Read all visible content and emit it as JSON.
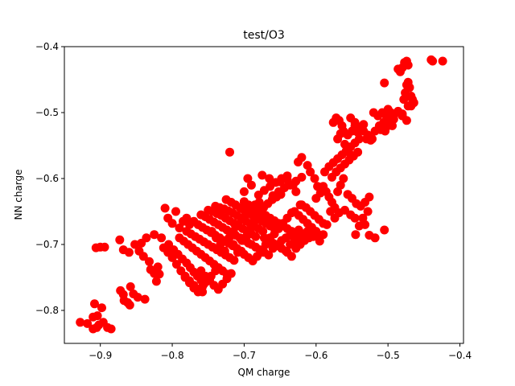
{
  "chart_data": {
    "type": "scatter",
    "title": "test/O3",
    "xlabel": "QM charge",
    "ylabel": "NN charge",
    "xlim": [
      -0.95,
      -0.395
    ],
    "ylim": [
      -0.85,
      -0.4
    ],
    "xticks": [
      -0.9,
      -0.8,
      -0.7,
      -0.6,
      -0.5,
      -0.4
    ],
    "xtick_labels": [
      "−0.9",
      "−0.8",
      "−0.7",
      "−0.6",
      "−0.5",
      "−0.4"
    ],
    "yticks": [
      -0.8,
      -0.7,
      -0.6,
      -0.5,
      -0.4
    ],
    "ytick_labels": [
      "−0.8",
      "−0.7",
      "−0.6",
      "−0.5",
      "−0.4"
    ],
    "grid": false,
    "legend": "none",
    "marker_color": "#ff0000",
    "points": [
      [
        -0.928,
        -0.818
      ],
      [
        -0.918,
        -0.82
      ],
      [
        -0.91,
        -0.828
      ],
      [
        -0.905,
        -0.826
      ],
      [
        -0.902,
        -0.822
      ],
      [
        -0.896,
        -0.818
      ],
      [
        -0.89,
        -0.826
      ],
      [
        -0.885,
        -0.828
      ],
      [
        -0.908,
        -0.79
      ],
      [
        -0.898,
        -0.796
      ],
      [
        -0.904,
        -0.808
      ],
      [
        -0.91,
        -0.81
      ],
      [
        -0.906,
        -0.705
      ],
      [
        -0.9,
        -0.704
      ],
      [
        -0.894,
        -0.704
      ],
      [
        -0.873,
        -0.693
      ],
      [
        -0.868,
        -0.708
      ],
      [
        -0.86,
        -0.712
      ],
      [
        -0.872,
        -0.77
      ],
      [
        -0.868,
        -0.776
      ],
      [
        -0.867,
        -0.785
      ],
      [
        -0.862,
        -0.788
      ],
      [
        -0.859,
        -0.792
      ],
      [
        -0.854,
        -0.775
      ],
      [
        -0.858,
        -0.764
      ],
      [
        -0.848,
        -0.78
      ],
      [
        -0.838,
        -0.783
      ],
      [
        -0.852,
        -0.7
      ],
      [
        -0.846,
        -0.71
      ],
      [
        -0.84,
        -0.718
      ],
      [
        -0.843,
        -0.698
      ],
      [
        -0.836,
        -0.69
      ],
      [
        -0.832,
        -0.726
      ],
      [
        -0.83,
        -0.738
      ],
      [
        -0.825,
        -0.744
      ],
      [
        -0.822,
        -0.756
      ],
      [
        -0.82,
        -0.734
      ],
      [
        -0.818,
        -0.745
      ],
      [
        -0.81,
        -0.645
      ],
      [
        -0.806,
        -0.66
      ],
      [
        -0.8,
        -0.668
      ],
      [
        -0.795,
        -0.65
      ],
      [
        -0.79,
        -0.675
      ],
      [
        -0.785,
        -0.665
      ],
      [
        -0.78,
        -0.66
      ],
      [
        -0.776,
        -0.67
      ],
      [
        -0.825,
        -0.685
      ],
      [
        -0.815,
        -0.69
      ],
      [
        -0.805,
        -0.7
      ],
      [
        -0.798,
        -0.708
      ],
      [
        -0.792,
        -0.715
      ],
      [
        -0.786,
        -0.722
      ],
      [
        -0.78,
        -0.728
      ],
      [
        -0.775,
        -0.735
      ],
      [
        -0.77,
        -0.742
      ],
      [
        -0.765,
        -0.748
      ],
      [
        -0.76,
        -0.754
      ],
      [
        -0.756,
        -0.76
      ],
      [
        -0.812,
        -0.705
      ],
      [
        -0.806,
        -0.712
      ],
      [
        -0.8,
        -0.72
      ],
      [
        -0.794,
        -0.73
      ],
      [
        -0.788,
        -0.74
      ],
      [
        -0.782,
        -0.748
      ],
      [
        -0.776,
        -0.755
      ],
      [
        -0.77,
        -0.762
      ],
      [
        -0.764,
        -0.768
      ],
      [
        -0.758,
        -0.772
      ],
      [
        -0.79,
        -0.69
      ],
      [
        -0.784,
        -0.695
      ],
      [
        -0.778,
        -0.7
      ],
      [
        -0.772,
        -0.705
      ],
      [
        -0.766,
        -0.71
      ],
      [
        -0.76,
        -0.715
      ],
      [
        -0.754,
        -0.72
      ],
      [
        -0.748,
        -0.725
      ],
      [
        -0.742,
        -0.73
      ],
      [
        -0.736,
        -0.735
      ],
      [
        -0.73,
        -0.74
      ],
      [
        -0.724,
        -0.745
      ],
      [
        -0.78,
        -0.68
      ],
      [
        -0.774,
        -0.684
      ],
      [
        -0.768,
        -0.688
      ],
      [
        -0.762,
        -0.692
      ],
      [
        -0.756,
        -0.696
      ],
      [
        -0.75,
        -0.7
      ],
      [
        -0.744,
        -0.704
      ],
      [
        -0.738,
        -0.708
      ],
      [
        -0.732,
        -0.712
      ],
      [
        -0.726,
        -0.716
      ],
      [
        -0.72,
        -0.72
      ],
      [
        -0.714,
        -0.724
      ],
      [
        -0.77,
        -0.665
      ],
      [
        -0.764,
        -0.67
      ],
      [
        -0.758,
        -0.674
      ],
      [
        -0.752,
        -0.678
      ],
      [
        -0.746,
        -0.682
      ],
      [
        -0.74,
        -0.686
      ],
      [
        -0.734,
        -0.69
      ],
      [
        -0.728,
        -0.694
      ],
      [
        -0.722,
        -0.698
      ],
      [
        -0.716,
        -0.702
      ],
      [
        -0.71,
        -0.706
      ],
      [
        -0.704,
        -0.71
      ],
      [
        -0.76,
        -0.655
      ],
      [
        -0.754,
        -0.658
      ],
      [
        -0.748,
        -0.662
      ],
      [
        -0.742,
        -0.666
      ],
      [
        -0.736,
        -0.67
      ],
      [
        -0.73,
        -0.674
      ],
      [
        -0.724,
        -0.678
      ],
      [
        -0.718,
        -0.682
      ],
      [
        -0.712,
        -0.686
      ],
      [
        -0.706,
        -0.69
      ],
      [
        -0.7,
        -0.694
      ],
      [
        -0.694,
        -0.698
      ],
      [
        -0.75,
        -0.648
      ],
      [
        -0.744,
        -0.65
      ],
      [
        -0.738,
        -0.653
      ],
      [
        -0.732,
        -0.656
      ],
      [
        -0.726,
        -0.66
      ],
      [
        -0.72,
        -0.664
      ],
      [
        -0.714,
        -0.668
      ],
      [
        -0.708,
        -0.672
      ],
      [
        -0.702,
        -0.676
      ],
      [
        -0.696,
        -0.68
      ],
      [
        -0.69,
        -0.684
      ],
      [
        -0.684,
        -0.688
      ],
      [
        -0.74,
        -0.642
      ],
      [
        -0.734,
        -0.644
      ],
      [
        -0.728,
        -0.646
      ],
      [
        -0.722,
        -0.649
      ],
      [
        -0.716,
        -0.652
      ],
      [
        -0.71,
        -0.656
      ],
      [
        -0.704,
        -0.66
      ],
      [
        -0.698,
        -0.664
      ],
      [
        -0.692,
        -0.668
      ],
      [
        -0.686,
        -0.672
      ],
      [
        -0.68,
        -0.676
      ],
      [
        -0.674,
        -0.68
      ],
      [
        -0.725,
        -0.632
      ],
      [
        -0.718,
        -0.636
      ],
      [
        -0.712,
        -0.64
      ],
      [
        -0.706,
        -0.644
      ],
      [
        -0.7,
        -0.648
      ],
      [
        -0.694,
        -0.652
      ],
      [
        -0.688,
        -0.656
      ],
      [
        -0.682,
        -0.66
      ],
      [
        -0.676,
        -0.664
      ],
      [
        -0.67,
        -0.668
      ],
      [
        -0.664,
        -0.672
      ],
      [
        -0.658,
        -0.676
      ],
      [
        -0.7,
        -0.635
      ],
      [
        -0.694,
        -0.64
      ],
      [
        -0.688,
        -0.644
      ],
      [
        -0.682,
        -0.648
      ],
      [
        -0.676,
        -0.652
      ],
      [
        -0.67,
        -0.656
      ],
      [
        -0.664,
        -0.66
      ],
      [
        -0.658,
        -0.664
      ],
      [
        -0.652,
        -0.668
      ],
      [
        -0.646,
        -0.672
      ],
      [
        -0.64,
        -0.676
      ],
      [
        -0.634,
        -0.68
      ],
      [
        -0.69,
        -0.7
      ],
      [
        -0.684,
        -0.704
      ],
      [
        -0.678,
        -0.708
      ],
      [
        -0.672,
        -0.712
      ],
      [
        -0.666,
        -0.716
      ],
      [
        -0.66,
        -0.706
      ],
      [
        -0.654,
        -0.7
      ],
      [
        -0.648,
        -0.694
      ],
      [
        -0.642,
        -0.69
      ],
      [
        -0.636,
        -0.686
      ],
      [
        -0.63,
        -0.682
      ],
      [
        -0.624,
        -0.678
      ],
      [
        -0.7,
        -0.715
      ],
      [
        -0.694,
        -0.72
      ],
      [
        -0.688,
        -0.725
      ],
      [
        -0.682,
        -0.718
      ],
      [
        -0.676,
        -0.712
      ],
      [
        -0.67,
        -0.7
      ],
      [
        -0.664,
        -0.69
      ],
      [
        -0.658,
        -0.684
      ],
      [
        -0.652,
        -0.676
      ],
      [
        -0.646,
        -0.668
      ],
      [
        -0.64,
        -0.66
      ],
      [
        -0.634,
        -0.652
      ],
      [
        -0.745,
        -0.68
      ],
      [
        -0.739,
        -0.69
      ],
      [
        -0.733,
        -0.7
      ],
      [
        -0.727,
        -0.71
      ],
      [
        -0.721,
        -0.69
      ],
      [
        -0.715,
        -0.68
      ],
      [
        -0.709,
        -0.67
      ],
      [
        -0.703,
        -0.662
      ],
      [
        -0.697,
        -0.654
      ],
      [
        -0.691,
        -0.646
      ],
      [
        -0.685,
        -0.64
      ],
      [
        -0.679,
        -0.636
      ],
      [
        -0.715,
        -0.7
      ],
      [
        -0.709,
        -0.712
      ],
      [
        -0.703,
        -0.694
      ],
      [
        -0.697,
        -0.688
      ],
      [
        -0.691,
        -0.676
      ],
      [
        -0.685,
        -0.664
      ],
      [
        -0.679,
        -0.65
      ],
      [
        -0.673,
        -0.644
      ],
      [
        -0.667,
        -0.638
      ],
      [
        -0.661,
        -0.632
      ],
      [
        -0.655,
        -0.628
      ],
      [
        -0.649,
        -0.624
      ],
      [
        -0.68,
        -0.625
      ],
      [
        -0.672,
        -0.618
      ],
      [
        -0.664,
        -0.612
      ],
      [
        -0.656,
        -0.606
      ],
      [
        -0.648,
        -0.6
      ],
      [
        -0.64,
        -0.596
      ],
      [
        -0.66,
        -0.626
      ],
      [
        -0.652,
        -0.62
      ],
      [
        -0.644,
        -0.614
      ],
      [
        -0.636,
        -0.61
      ],
      [
        -0.628,
        -0.604
      ],
      [
        -0.62,
        -0.598
      ],
      [
        -0.63,
        -0.65
      ],
      [
        -0.624,
        -0.656
      ],
      [
        -0.618,
        -0.662
      ],
      [
        -0.612,
        -0.668
      ],
      [
        -0.606,
        -0.674
      ],
      [
        -0.6,
        -0.68
      ],
      [
        -0.62,
        -0.64
      ],
      [
        -0.614,
        -0.644
      ],
      [
        -0.608,
        -0.65
      ],
      [
        -0.602,
        -0.656
      ],
      [
        -0.596,
        -0.662
      ],
      [
        -0.59,
        -0.668
      ],
      [
        -0.672,
        -0.69
      ],
      [
        -0.666,
        -0.694
      ],
      [
        -0.66,
        -0.698
      ],
      [
        -0.654,
        -0.702
      ],
      [
        -0.648,
        -0.706
      ],
      [
        -0.642,
        -0.71
      ],
      [
        -0.636,
        -0.7
      ],
      [
        -0.63,
        -0.694
      ],
      [
        -0.624,
        -0.688
      ],
      [
        -0.618,
        -0.684
      ],
      [
        -0.612,
        -0.68
      ],
      [
        -0.606,
        -0.676
      ],
      [
        -0.72,
        -0.56
      ],
      [
        -0.705,
        -0.645
      ],
      [
        -0.7,
        -0.62
      ],
      [
        -0.69,
        -0.61
      ],
      [
        -0.695,
        -0.6
      ],
      [
        -0.675,
        -0.595
      ],
      [
        -0.665,
        -0.6
      ],
      [
        -0.65,
        -0.605
      ],
      [
        -0.64,
        -0.602
      ],
      [
        -0.632,
        -0.61
      ],
      [
        -0.628,
        -0.62
      ],
      [
        -0.622,
        -0.64
      ],
      [
        -0.625,
        -0.575
      ],
      [
        -0.62,
        -0.568
      ],
      [
        -0.612,
        -0.58
      ],
      [
        -0.608,
        -0.59
      ],
      [
        -0.602,
        -0.6
      ],
      [
        -0.598,
        -0.612
      ],
      [
        -0.594,
        -0.622
      ],
      [
        -0.6,
        -0.63
      ],
      [
        -0.58,
        -0.65
      ],
      [
        -0.574,
        -0.66
      ],
      [
        -0.568,
        -0.652
      ],
      [
        -0.56,
        -0.648
      ],
      [
        -0.552,
        -0.655
      ],
      [
        -0.546,
        -0.66
      ],
      [
        -0.535,
        -0.66
      ],
      [
        -0.528,
        -0.65
      ],
      [
        -0.585,
        -0.67
      ],
      [
        -0.59,
        -0.685
      ],
      [
        -0.595,
        -0.695
      ],
      [
        -0.59,
        -0.612
      ],
      [
        -0.586,
        -0.62
      ],
      [
        -0.582,
        -0.628
      ],
      [
        -0.578,
        -0.636
      ],
      [
        -0.574,
        -0.644
      ],
      [
        -0.57,
        -0.62
      ],
      [
        -0.566,
        -0.61
      ],
      [
        -0.562,
        -0.6
      ],
      [
        -0.588,
        -0.59
      ],
      [
        -0.582,
        -0.582
      ],
      [
        -0.576,
        -0.576
      ],
      [
        -0.57,
        -0.57
      ],
      [
        -0.564,
        -0.564
      ],
      [
        -0.558,
        -0.558
      ],
      [
        -0.552,
        -0.552
      ],
      [
        -0.546,
        -0.546
      ],
      [
        -0.54,
        -0.54
      ],
      [
        -0.578,
        -0.598
      ],
      [
        -0.572,
        -0.59
      ],
      [
        -0.566,
        -0.584
      ],
      [
        -0.56,
        -0.578
      ],
      [
        -0.554,
        -0.572
      ],
      [
        -0.548,
        -0.566
      ],
      [
        -0.542,
        -0.56
      ],
      [
        -0.57,
        -0.54
      ],
      [
        -0.566,
        -0.532
      ],
      [
        -0.562,
        -0.528
      ],
      [
        -0.556,
        -0.534
      ],
      [
        -0.55,
        -0.528
      ],
      [
        -0.546,
        -0.52
      ],
      [
        -0.542,
        -0.53
      ],
      [
        -0.538,
        -0.524
      ],
      [
        -0.534,
        -0.518
      ],
      [
        -0.576,
        -0.515
      ],
      [
        -0.572,
        -0.508
      ],
      [
        -0.568,
        -0.512
      ],
      [
        -0.564,
        -0.52
      ],
      [
        -0.56,
        -0.548
      ],
      [
        -0.556,
        -0.556
      ],
      [
        -0.552,
        -0.564
      ],
      [
        -0.552,
        -0.508
      ],
      [
        -0.546,
        -0.515
      ],
      [
        -0.54,
        -0.522
      ],
      [
        -0.534,
        -0.528
      ],
      [
        -0.528,
        -0.534
      ],
      [
        -0.522,
        -0.54
      ],
      [
        -0.52,
        -0.5
      ],
      [
        -0.514,
        -0.505
      ],
      [
        -0.508,
        -0.5
      ],
      [
        -0.502,
        -0.506
      ],
      [
        -0.496,
        -0.5
      ],
      [
        -0.5,
        -0.495
      ],
      [
        -0.506,
        -0.515
      ],
      [
        -0.512,
        -0.52
      ],
      [
        -0.498,
        -0.518
      ],
      [
        -0.492,
        -0.51
      ],
      [
        -0.486,
        -0.498
      ],
      [
        -0.48,
        -0.502
      ],
      [
        -0.474,
        -0.512
      ],
      [
        -0.468,
        -0.49
      ],
      [
        -0.472,
        -0.49
      ],
      [
        -0.53,
        -0.54
      ],
      [
        -0.524,
        -0.542
      ],
      [
        -0.518,
        -0.528
      ],
      [
        -0.51,
        -0.526
      ],
      [
        -0.504,
        -0.528
      ],
      [
        -0.5,
        -0.52
      ],
      [
        -0.496,
        -0.512
      ],
      [
        -0.492,
        -0.504
      ],
      [
        -0.505,
        -0.455
      ],
      [
        -0.494,
        -0.52
      ],
      [
        -0.48,
        -0.505
      ],
      [
        -0.478,
        -0.48
      ],
      [
        -0.476,
        -0.47
      ],
      [
        -0.474,
        -0.458
      ],
      [
        -0.472,
        -0.454
      ],
      [
        -0.47,
        -0.462
      ],
      [
        -0.468,
        -0.475
      ],
      [
        -0.466,
        -0.48
      ],
      [
        -0.464,
        -0.485
      ],
      [
        -0.477,
        -0.424
      ],
      [
        -0.474,
        -0.422
      ],
      [
        -0.472,
        -0.428
      ],
      [
        -0.48,
        -0.432
      ],
      [
        -0.483,
        -0.438
      ],
      [
        -0.486,
        -0.434
      ],
      [
        -0.44,
        -0.42
      ],
      [
        -0.438,
        -0.422
      ],
      [
        -0.424,
        -0.422
      ],
      [
        -0.545,
        -0.685
      ],
      [
        -0.54,
        -0.672
      ],
      [
        -0.532,
        -0.67
      ],
      [
        -0.526,
        -0.686
      ],
      [
        -0.518,
        -0.69
      ],
      [
        -0.505,
        -0.678
      ],
      [
        -0.556,
        -0.624
      ],
      [
        -0.55,
        -0.63
      ],
      [
        -0.544,
        -0.638
      ],
      [
        -0.538,
        -0.642
      ],
      [
        -0.532,
        -0.636
      ],
      [
        -0.526,
        -0.628
      ],
      [
        -0.64,
        -0.712
      ],
      [
        -0.634,
        -0.718
      ],
      [
        -0.628,
        -0.706
      ],
      [
        -0.622,
        -0.7
      ],
      [
        -0.616,
        -0.694
      ],
      [
        -0.61,
        -0.69
      ],
      [
        -0.604,
        -0.688
      ],
      [
        -0.598,
        -0.684
      ],
      [
        -0.76,
        -0.74
      ],
      [
        -0.754,
        -0.748
      ],
      [
        -0.748,
        -0.754
      ],
      [
        -0.742,
        -0.762
      ],
      [
        -0.736,
        -0.768
      ],
      [
        -0.73,
        -0.76
      ],
      [
        -0.724,
        -0.752
      ],
      [
        -0.718,
        -0.744
      ],
      [
        -0.782,
        -0.75
      ],
      [
        -0.776,
        -0.758
      ],
      [
        -0.77,
        -0.766
      ],
      [
        -0.764,
        -0.772
      ],
      [
        -0.758,
        -0.764
      ],
      [
        -0.752,
        -0.756
      ],
      [
        -0.746,
        -0.748
      ],
      [
        -0.74,
        -0.74
      ]
    ]
  }
}
